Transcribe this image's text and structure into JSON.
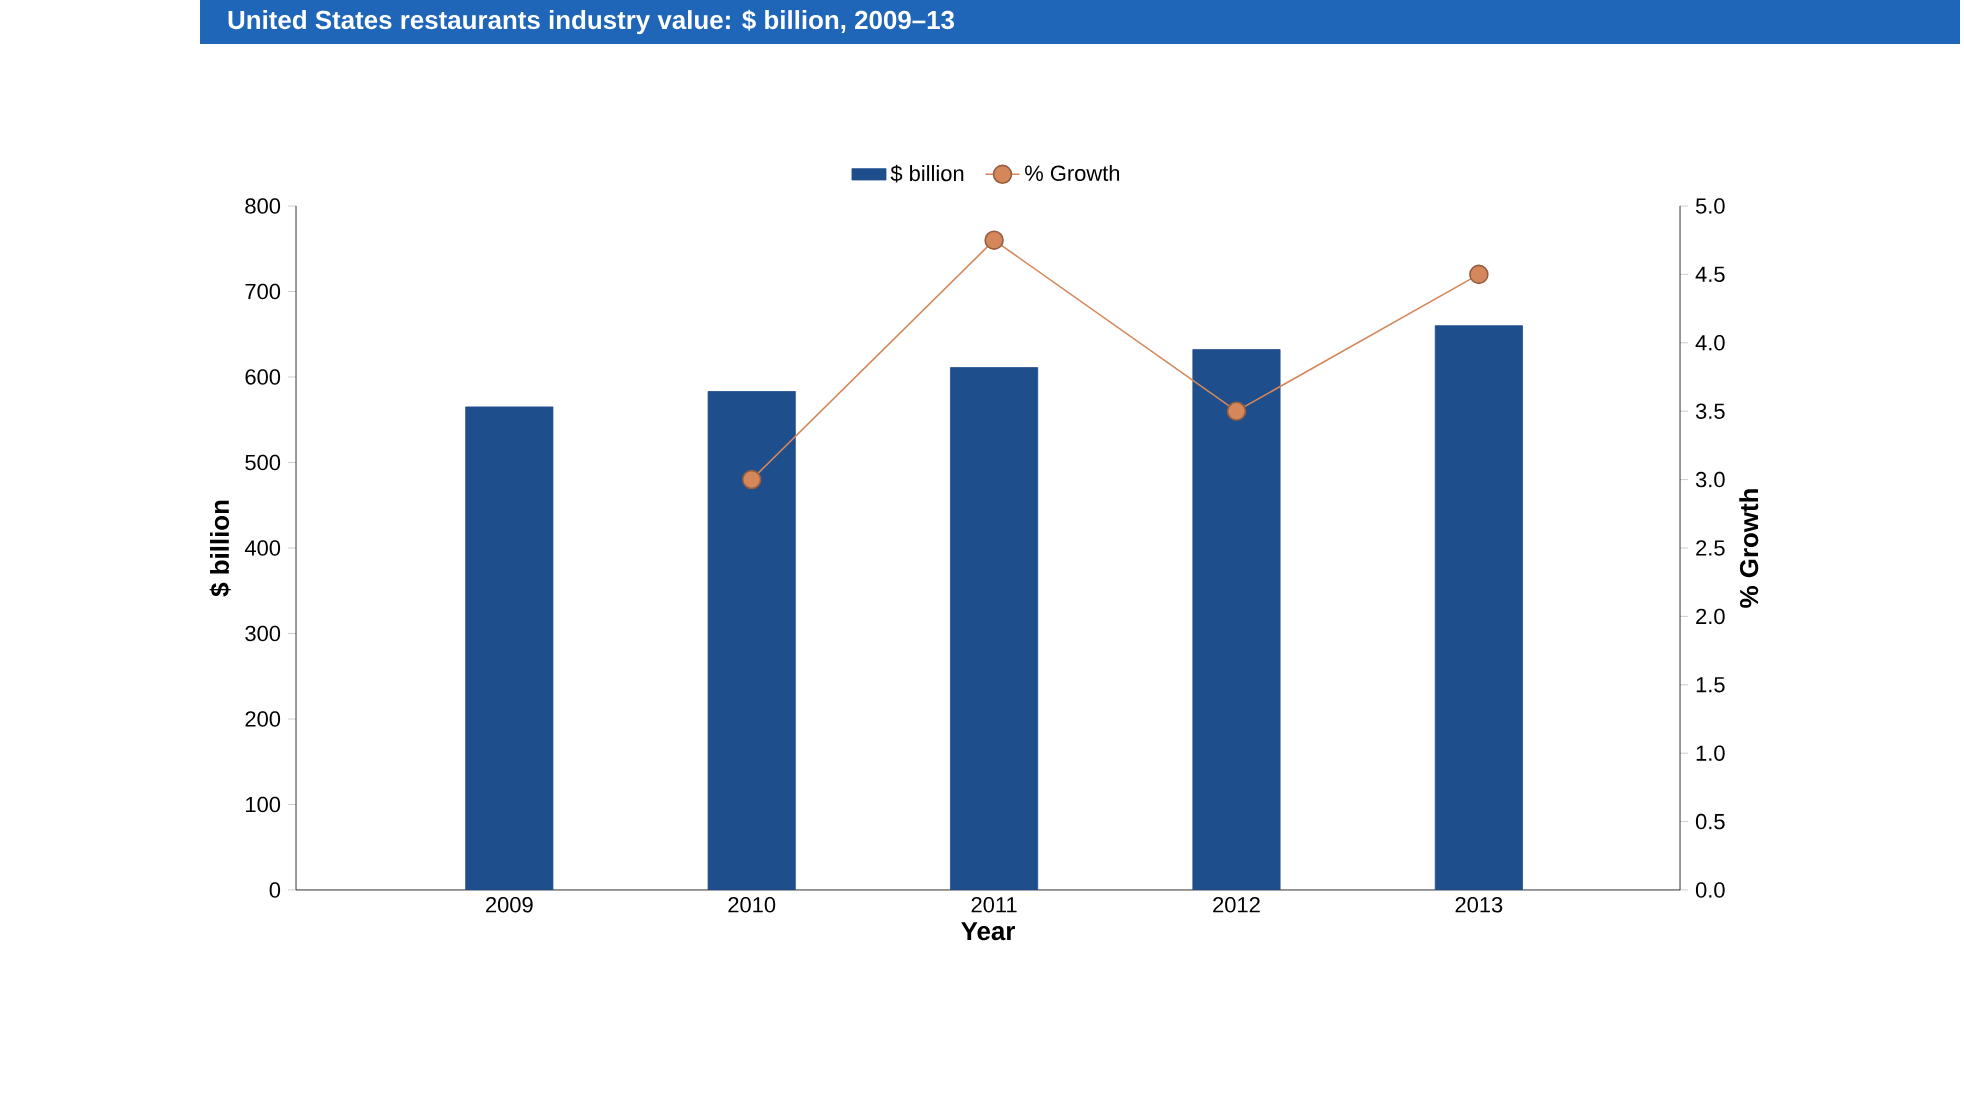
{
  "chart_data": {
    "type": "bar",
    "title": "United States restaurants industry value: $ billion, 2009–13",
    "xlabel": "Year",
    "ylabel": "$ billion",
    "y2label": "% Growth",
    "categories": [
      "2009",
      "2010",
      "2011",
      "2012",
      "2013"
    ],
    "series": [
      {
        "name": "$ billion",
        "color": "#1f4e8c",
        "values": [
          565,
          583,
          611,
          632,
          660
        ]
      },
      {
        "name": "% Growth",
        "type": "line",
        "axis": "y2",
        "color": "#d4875a",
        "marker": "circle",
        "values": [
          null,
          3.0,
          4.75,
          3.5,
          4.5
        ]
      }
    ],
    "ylim": [
      0,
      800
    ],
    "yticks": [
      0,
      100,
      200,
      300,
      400,
      500,
      600,
      700,
      800
    ],
    "y2lim": [
      0,
      5
    ],
    "y2ticks": [
      {
        "value": 0,
        "label": "0.0"
      },
      {
        "value": 0.5,
        "label": "0.5"
      },
      {
        "value": 1,
        "label": "1.0"
      },
      {
        "value": 1.5,
        "label": "1.5"
      },
      {
        "value": 2,
        "label": "2.0"
      },
      {
        "value": 2.5,
        "label": "2.5"
      },
      {
        "value": 3,
        "label": "3.0"
      },
      {
        "value": 3.5,
        "label": "3.5"
      },
      {
        "value": 4,
        "label": "4.0"
      },
      {
        "value": 4.5,
        "label": "4.5"
      },
      {
        "value": 5,
        "label": "5.0"
      }
    ],
    "legend": "top"
  }
}
